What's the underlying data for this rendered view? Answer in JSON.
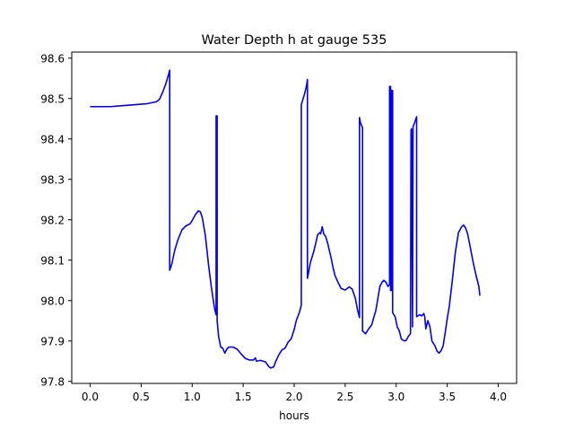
{
  "chart_data": {
    "type": "line",
    "title": "Water Depth h at gauge 535",
    "xlabel": "hours",
    "ylabel": "",
    "xlim": [
      -0.18,
      4.18
    ],
    "ylim": [
      97.795,
      98.615
    ],
    "xticks": [
      0.0,
      0.5,
      1.0,
      1.5,
      2.0,
      2.5,
      3.0,
      3.5,
      4.0
    ],
    "xtick_labels": [
      "0.0",
      "0.5",
      "1.0",
      "1.5",
      "2.0",
      "2.5",
      "3.0",
      "3.5",
      "4.0"
    ],
    "yticks": [
      97.8,
      97.9,
      98.0,
      98.1,
      98.2,
      98.3,
      98.4,
      98.5,
      98.6
    ],
    "ytick_labels": [
      "97.8",
      "97.9",
      "98.0",
      "98.1",
      "98.2",
      "98.3",
      "98.4",
      "98.5",
      "98.6"
    ],
    "grid": false,
    "series": [
      {
        "color": "#0000ff",
        "points": [
          [
            0.0,
            98.48
          ],
          [
            0.2,
            98.48
          ],
          [
            0.4,
            98.484
          ],
          [
            0.55,
            98.487
          ],
          [
            0.65,
            98.492
          ],
          [
            0.68,
            98.498
          ],
          [
            0.71,
            98.515
          ],
          [
            0.74,
            98.535
          ],
          [
            0.77,
            98.56
          ],
          [
            0.78,
            98.57
          ],
          [
            0.78,
            98.075
          ],
          [
            0.8,
            98.09
          ],
          [
            0.83,
            98.125
          ],
          [
            0.86,
            98.15
          ],
          [
            0.9,
            98.175
          ],
          [
            0.94,
            98.185
          ],
          [
            0.98,
            98.19
          ],
          [
            1.0,
            98.198
          ],
          [
            1.03,
            98.212
          ],
          [
            1.06,
            98.222
          ],
          [
            1.08,
            98.22
          ],
          [
            1.1,
            98.205
          ],
          [
            1.13,
            98.16
          ],
          [
            1.16,
            98.09
          ],
          [
            1.19,
            98.03
          ],
          [
            1.22,
            97.98
          ],
          [
            1.235,
            97.965
          ],
          [
            1.235,
            98.457
          ],
          [
            1.245,
            98.457
          ],
          [
            1.245,
            97.95
          ],
          [
            1.26,
            97.91
          ],
          [
            1.28,
            97.885
          ],
          [
            1.3,
            97.882
          ],
          [
            1.32,
            97.87
          ],
          [
            1.34,
            97.88
          ],
          [
            1.36,
            97.885
          ],
          [
            1.4,
            97.885
          ],
          [
            1.44,
            97.88
          ],
          [
            1.48,
            97.868
          ],
          [
            1.52,
            97.857
          ],
          [
            1.56,
            97.853
          ],
          [
            1.6,
            97.853
          ],
          [
            1.62,
            97.858
          ],
          [
            1.63,
            97.85
          ],
          [
            1.67,
            97.852
          ],
          [
            1.72,
            97.848
          ],
          [
            1.75,
            97.837
          ],
          [
            1.77,
            97.833
          ],
          [
            1.8,
            97.836
          ],
          [
            1.82,
            97.85
          ],
          [
            1.85,
            97.866
          ],
          [
            1.88,
            97.878
          ],
          [
            1.91,
            97.882
          ],
          [
            1.94,
            97.897
          ],
          [
            1.97,
            97.905
          ],
          [
            2.0,
            97.928
          ],
          [
            2.02,
            97.95
          ],
          [
            2.05,
            97.97
          ],
          [
            2.07,
            97.988
          ],
          [
            2.07,
            98.485
          ],
          [
            2.1,
            98.51
          ],
          [
            2.12,
            98.53
          ],
          [
            2.13,
            98.547
          ],
          [
            2.13,
            98.055
          ],
          [
            2.16,
            98.095
          ],
          [
            2.19,
            98.12
          ],
          [
            2.21,
            98.14
          ],
          [
            2.23,
            98.163
          ],
          [
            2.25,
            98.168
          ],
          [
            2.26,
            98.165
          ],
          [
            2.275,
            98.183
          ],
          [
            2.29,
            98.165
          ],
          [
            2.31,
            98.158
          ],
          [
            2.33,
            98.14
          ],
          [
            2.36,
            98.108
          ],
          [
            2.38,
            98.083
          ],
          [
            2.4,
            98.062
          ],
          [
            2.43,
            98.045
          ],
          [
            2.46,
            98.03
          ],
          [
            2.5,
            98.026
          ],
          [
            2.54,
            98.034
          ],
          [
            2.57,
            98.028
          ],
          [
            2.6,
            98.005
          ],
          [
            2.62,
            97.978
          ],
          [
            2.64,
            97.958
          ],
          [
            2.64,
            98.453
          ],
          [
            2.65,
            98.44
          ],
          [
            2.67,
            98.428
          ],
          [
            2.67,
            97.925
          ],
          [
            2.7,
            97.918
          ],
          [
            2.73,
            97.93
          ],
          [
            2.76,
            97.94
          ],
          [
            2.78,
            97.958
          ],
          [
            2.8,
            97.975
          ],
          [
            2.82,
            98.005
          ],
          [
            2.84,
            98.035
          ],
          [
            2.86,
            98.045
          ],
          [
            2.88,
            98.05
          ],
          [
            2.9,
            98.045
          ],
          [
            2.92,
            98.035
          ],
          [
            2.935,
            98.04
          ],
          [
            2.935,
            98.53
          ],
          [
            2.945,
            98.53
          ],
          [
            2.945,
            98.025
          ],
          [
            2.955,
            98.025
          ],
          [
            2.955,
            98.52
          ],
          [
            2.965,
            98.52
          ],
          [
            2.965,
            97.97
          ],
          [
            2.99,
            97.96
          ],
          [
            3.01,
            97.935
          ],
          [
            3.03,
            97.925
          ],
          [
            3.05,
            97.905
          ],
          [
            3.08,
            97.9
          ],
          [
            3.1,
            97.902
          ],
          [
            3.12,
            97.912
          ],
          [
            3.14,
            97.918
          ],
          [
            3.145,
            98.422
          ],
          [
            3.15,
            98.425
          ],
          [
            3.16,
            97.935
          ],
          [
            3.165,
            98.43
          ],
          [
            3.18,
            98.44
          ],
          [
            3.2,
            98.455
          ],
          [
            3.2,
            97.96
          ],
          [
            3.23,
            97.965
          ],
          [
            3.25,
            97.962
          ],
          [
            3.27,
            97.968
          ],
          [
            3.28,
            97.96
          ],
          [
            3.29,
            97.93
          ],
          [
            3.31,
            97.95
          ],
          [
            3.33,
            97.936
          ],
          [
            3.35,
            97.9
          ],
          [
            3.38,
            97.888
          ],
          [
            3.4,
            97.875
          ],
          [
            3.42,
            97.87
          ],
          [
            3.44,
            97.876
          ],
          [
            3.46,
            97.888
          ],
          [
            3.48,
            97.92
          ],
          [
            3.5,
            97.955
          ],
          [
            3.52,
            97.985
          ],
          [
            3.55,
            98.05
          ],
          [
            3.58,
            98.12
          ],
          [
            3.61,
            98.168
          ],
          [
            3.64,
            98.182
          ],
          [
            3.66,
            98.187
          ],
          [
            3.68,
            98.18
          ],
          [
            3.7,
            98.165
          ],
          [
            3.72,
            98.14
          ],
          [
            3.75,
            98.1
          ],
          [
            3.78,
            98.065
          ],
          [
            3.81,
            98.035
          ],
          [
            3.82,
            98.012
          ]
        ]
      }
    ]
  }
}
